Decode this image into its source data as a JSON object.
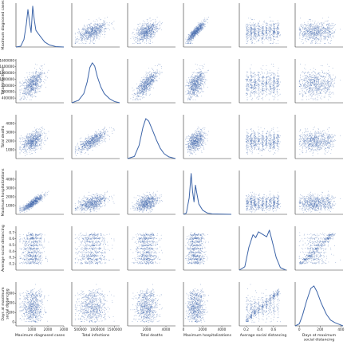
{
  "chart_data": {
    "type": "pairplot",
    "diagonal": "kde",
    "off_diagonal": "scatter",
    "point_color": "#4a6fb0",
    "line_color": "#3c64a8",
    "grid": false,
    "variables": [
      {
        "key": "max_dx",
        "label": [
          "Maximum diagnosed cases"
        ],
        "range": [
          0,
          3000
        ],
        "ticks": [
          1000,
          2000,
          3000
        ],
        "tick_labels": [
          "1000",
          "2000",
          "3000"
        ],
        "y_ticks": [],
        "y_tick_labels": [],
        "kde": [
          [
            0,
            0
          ],
          [
            300,
            0.02
          ],
          [
            500,
            0.18
          ],
          [
            650,
            0.55
          ],
          [
            750,
            0.9
          ],
          [
            850,
            0.6
          ],
          [
            950,
            0.35
          ],
          [
            1050,
            0.98
          ],
          [
            1150,
            0.65
          ],
          [
            1250,
            0.4
          ],
          [
            1400,
            0.32
          ],
          [
            1600,
            0.22
          ],
          [
            1800,
            0.12
          ],
          [
            2100,
            0.05
          ],
          [
            2500,
            0.01
          ],
          [
            3000,
            0
          ]
        ]
      },
      {
        "key": "inf",
        "label": [
          "Total infections"
        ],
        "range": [
          250000,
          1650000
        ],
        "ticks": [
          500000,
          1000000,
          1500000
        ],
        "tick_labels": [
          "500000",
          "1000000",
          "1500000"
        ],
        "y_ticks": [
          400000,
          600000,
          800000,
          1000000,
          1200000,
          1400000,
          1600000
        ],
        "y_tick_labels": [
          "400000",
          "600000",
          "800000",
          "1000000",
          "1200000",
          "1400000",
          "1600000"
        ],
        "kde": [
          [
            250000,
            0
          ],
          [
            450000,
            0.06
          ],
          [
            600000,
            0.22
          ],
          [
            700000,
            0.5
          ],
          [
            780000,
            0.85
          ],
          [
            850000,
            0.96
          ],
          [
            920000,
            0.88
          ],
          [
            1000000,
            0.62
          ],
          [
            1100000,
            0.38
          ],
          [
            1200000,
            0.22
          ],
          [
            1350000,
            0.1
          ],
          [
            1500000,
            0.03
          ],
          [
            1650000,
            0
          ]
        ]
      },
      {
        "key": "deaths",
        "label": [
          "Total deaths"
        ],
        "range": [
          0,
          5000
        ],
        "ticks": [
          2000,
          4000
        ],
        "tick_labels": [
          "2000",
          "4000"
        ],
        "y_ticks": [
          1000,
          2000,
          3000,
          4000
        ],
        "y_tick_labels": [
          "1000",
          "2000",
          "3000",
          "4000"
        ],
        "kde": [
          [
            0,
            0
          ],
          [
            700,
            0.05
          ],
          [
            1200,
            0.32
          ],
          [
            1600,
            0.75
          ],
          [
            1900,
            0.96
          ],
          [
            2200,
            0.9
          ],
          [
            2600,
            0.68
          ],
          [
            3000,
            0.45
          ],
          [
            3400,
            0.25
          ],
          [
            3800,
            0.12
          ],
          [
            4300,
            0.04
          ],
          [
            5000,
            0
          ]
        ]
      },
      {
        "key": "max_hosp",
        "label": [
          "Maximum hospitalizations"
        ],
        "range": [
          0,
          5000
        ],
        "ticks": [
          0,
          2000,
          4000
        ],
        "tick_labels": [
          "0",
          "2000",
          "4000"
        ],
        "y_ticks": [
          1000,
          2000,
          3000,
          4000
        ],
        "y_tick_labels": [
          "1000",
          "2000",
          "3000",
          "4000"
        ],
        "kde": [
          [
            0,
            0
          ],
          [
            300,
            0.03
          ],
          [
            600,
            0.4
          ],
          [
            800,
            0.98
          ],
          [
            950,
            0.55
          ],
          [
            1100,
            0.3
          ],
          [
            1250,
            0.7
          ],
          [
            1400,
            0.5
          ],
          [
            1600,
            0.25
          ],
          [
            2000,
            0.1
          ],
          [
            2500,
            0.03
          ],
          [
            3000,
            0.01
          ],
          [
            5000,
            0
          ]
        ]
      },
      {
        "key": "avg_sd",
        "label": [
          "Average social distancing"
        ],
        "range": [
          0.1,
          0.8
        ],
        "ticks": [
          0.2,
          0.4,
          0.6
        ],
        "tick_labels": [
          "0.2",
          "0.4",
          "0.6"
        ],
        "y_ticks": [
          0.2,
          0.3,
          0.4,
          0.5,
          0.6,
          0.7
        ],
        "y_tick_labels": [
          "0.2",
          "0.3",
          "0.4",
          "0.5",
          "0.6",
          "0.7"
        ],
        "kde": [
          [
            0.1,
            0
          ],
          [
            0.18,
            0.08
          ],
          [
            0.24,
            0.55
          ],
          [
            0.3,
            0.85
          ],
          [
            0.34,
            0.78
          ],
          [
            0.38,
            0.92
          ],
          [
            0.44,
            0.86
          ],
          [
            0.5,
            0.8
          ],
          [
            0.54,
            0.96
          ],
          [
            0.58,
            0.7
          ],
          [
            0.64,
            0.3
          ],
          [
            0.7,
            0.06
          ],
          [
            0.78,
            0
          ]
        ]
      },
      {
        "key": "days_sd",
        "label": [
          "Days at maximum",
          "social distancing"
        ],
        "range": [
          -40,
          420
        ],
        "ticks": [
          0,
          200,
          400
        ],
        "tick_labels": [
          "0",
          "200",
          "400"
        ],
        "y_ticks": [
          0,
          100,
          200,
          300
        ],
        "y_tick_labels": [
          "0",
          "100",
          "200",
          "300"
        ],
        "kde": [
          [
            -40,
            0
          ],
          [
            0,
            0.05
          ],
          [
            30,
            0.25
          ],
          [
            70,
            0.6
          ],
          [
            110,
            0.9
          ],
          [
            140,
            0.96
          ],
          [
            170,
            0.82
          ],
          [
            210,
            0.55
          ],
          [
            260,
            0.28
          ],
          [
            300,
            0.14
          ],
          [
            340,
            0.08
          ],
          [
            380,
            0.04
          ],
          [
            420,
            0
          ]
        ]
      }
    ]
  }
}
